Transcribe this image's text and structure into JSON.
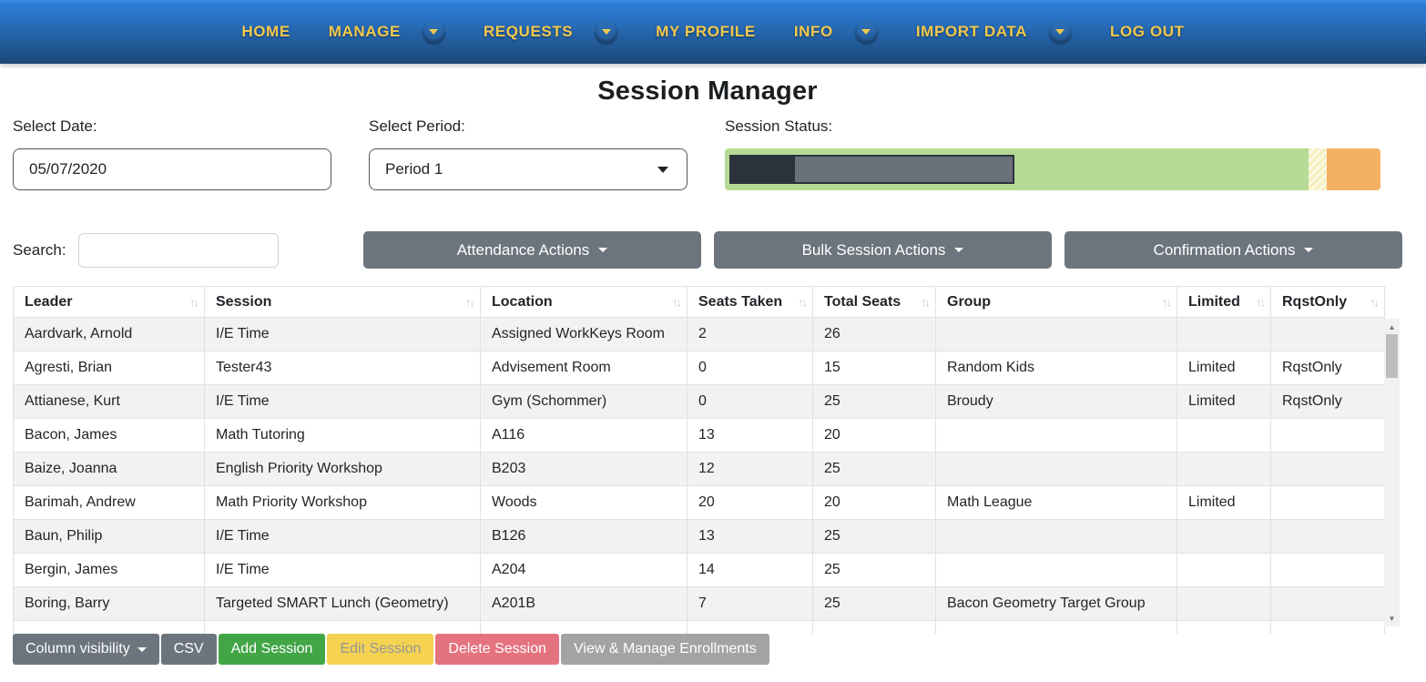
{
  "nav": {
    "text_color": "#f2c94d",
    "background_color": "#2a74c8",
    "items": [
      {
        "label": "HOME",
        "has_dropdown": false
      },
      {
        "label": "MANAGE",
        "has_dropdown": true
      },
      {
        "label": "REQUESTS",
        "has_dropdown": true
      },
      {
        "label": "MY PROFILE",
        "has_dropdown": false
      },
      {
        "label": "INFO",
        "has_dropdown": true
      },
      {
        "label": "IMPORT DATA",
        "has_dropdown": true
      },
      {
        "label": "LOG OUT",
        "has_dropdown": false
      }
    ]
  },
  "page_title": "Session Manager",
  "filters": {
    "date": {
      "label": "Select Date:",
      "value": "05/07/2020"
    },
    "period": {
      "label": "Select Period:",
      "value": "Period 1"
    },
    "status": {
      "label": "Session Status:",
      "segments": [
        {
          "name": "taken-dark",
          "color": "#2c323b",
          "width_pct": 9.8
        },
        {
          "name": "taken-gray",
          "color": "#6b717a",
          "width_pct": 33.7
        },
        {
          "name": "open-green",
          "color": "#b6da95",
          "width_pct": 45.5
        },
        {
          "name": "limited-yellow",
          "color": "#f6eebd",
          "width_pct": 2.8
        },
        {
          "name": "full-orange",
          "color": "#f4b164",
          "width_pct": 8.2
        }
      ]
    }
  },
  "toolbar": {
    "search_label": "Search:",
    "search_value": "",
    "buttons": [
      {
        "label": "Attendance Actions"
      },
      {
        "label": "Bulk Session Actions"
      },
      {
        "label": "Confirmation Actions"
      }
    ]
  },
  "table": {
    "columns": [
      "Leader",
      "Session",
      "Location",
      "Seats Taken",
      "Total Seats",
      "Group",
      "Limited",
      "RqstOnly"
    ],
    "rows": [
      [
        "Aardvark, Arnold",
        "I/E Time",
        "Assigned WorkKeys Room",
        "2",
        "26",
        "",
        "",
        ""
      ],
      [
        "Agresti, Brian",
        "Tester43",
        "Advisement Room",
        "0",
        "15",
        "Random Kids",
        "Limited",
        "RqstOnly"
      ],
      [
        "Attianese, Kurt",
        "I/E Time",
        "Gym (Schommer)",
        "0",
        "25",
        "Broudy",
        "Limited",
        "RqstOnly"
      ],
      [
        "Bacon, James",
        "Math Tutoring",
        "A116",
        "13",
        "20",
        "",
        "",
        ""
      ],
      [
        "Baize, Joanna",
        "English Priority Workshop",
        "B203",
        "12",
        "25",
        "",
        "",
        ""
      ],
      [
        "Barimah, Andrew",
        "Math Priority Workshop",
        "Woods",
        "20",
        "20",
        "Math League",
        "Limited",
        ""
      ],
      [
        "Baun, Philip",
        "I/E Time",
        "B126",
        "13",
        "25",
        "",
        "",
        ""
      ],
      [
        "Bergin, James",
        "I/E Time",
        "A204",
        "14",
        "25",
        "",
        "",
        ""
      ],
      [
        "Boring, Barry",
        "Targeted SMART Lunch (Geometry)",
        "A201B",
        "7",
        "25",
        "Bacon Geometry Target Group",
        "",
        ""
      ]
    ]
  },
  "footer": {
    "buttons": [
      {
        "label": "Column visibility",
        "style": "gray",
        "has_caret": true
      },
      {
        "label": "CSV",
        "style": "gray",
        "has_caret": false
      },
      {
        "label": "Add Session",
        "style": "green",
        "has_caret": false
      },
      {
        "label": "Edit Session",
        "style": "yellow",
        "has_caret": false
      },
      {
        "label": "Delete Session",
        "style": "red",
        "has_caret": false
      },
      {
        "label": "View & Manage Enrollments",
        "style": "lightgray",
        "has_caret": false
      }
    ]
  }
}
